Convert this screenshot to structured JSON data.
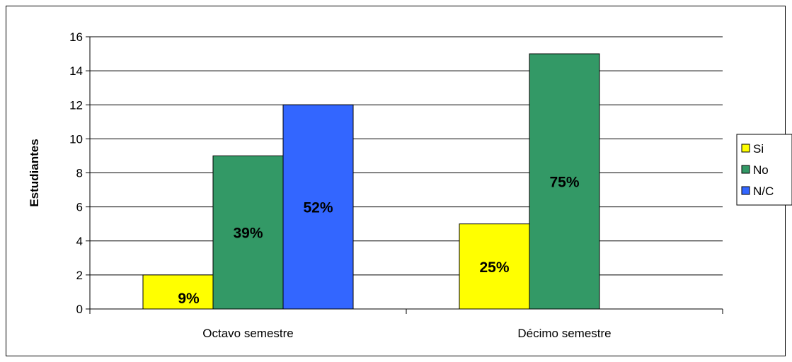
{
  "chart_data": {
    "type": "bar",
    "categories": [
      "Octavo semestre",
      "Décimo semestre"
    ],
    "series": [
      {
        "name": "Si",
        "color": "#ffff00",
        "values": [
          2,
          5
        ],
        "labels": [
          "9%",
          "25%"
        ]
      },
      {
        "name": "No",
        "color": "#339966",
        "values": [
          9,
          15
        ],
        "labels": [
          "39%",
          "75%"
        ]
      },
      {
        "name": "N/C",
        "color": "#3366ff",
        "values": [
          12,
          null
        ],
        "labels": [
          "52%",
          ""
        ]
      }
    ],
    "ylabel": "Estudiantes",
    "ylim": [
      0,
      16
    ],
    "yticks": [
      0,
      2,
      4,
      6,
      8,
      10,
      12,
      14,
      16
    ],
    "grid": true,
    "legend_position": "right"
  }
}
